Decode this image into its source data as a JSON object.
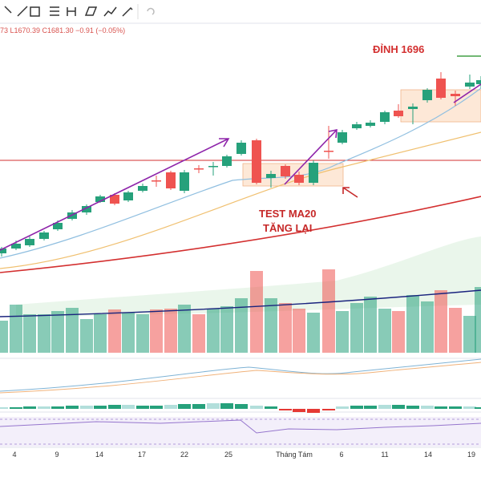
{
  "legend": {
    "ohlc": "73 L1670.39 C1681.30 −0.91 (−0.05%)"
  },
  "annotations": {
    "peak": "ĐỈNH 1696",
    "test": "TEST MA20",
    "rise": "TĂNG LẠI"
  },
  "time_axis": [
    "4",
    "9",
    "14",
    "17",
    "22",
    "25",
    "Tháng Tám",
    "6",
    "11",
    "14",
    "19"
  ]
}
